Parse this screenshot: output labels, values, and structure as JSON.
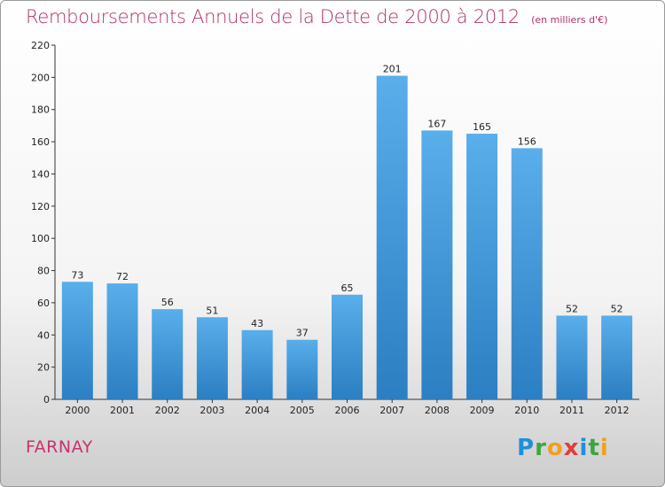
{
  "header": {
    "title": "Remboursements Annuels de la Dette de 2000 à 2012",
    "unit": "(en milliers d'€)"
  },
  "footer": {
    "commune": "FARNAY",
    "logo_letters": [
      "P",
      "r",
      "o",
      "x",
      "i",
      "t",
      "i"
    ]
  },
  "colors": {
    "bar_top": "#5aaeea",
    "bar_bottom": "#2b7fc2",
    "title": "#b0306a",
    "axis": "#333333"
  },
  "chart_data": {
    "type": "bar",
    "title": "Remboursements Annuels de la Dette de 2000 à 2012",
    "xlabel": "",
    "ylabel": "",
    "categories": [
      "2000",
      "2001",
      "2002",
      "2003",
      "2004",
      "2005",
      "2006",
      "2007",
      "2008",
      "2009",
      "2010",
      "2011",
      "2012"
    ],
    "values": [
      73,
      72,
      56,
      51,
      43,
      37,
      65,
      201,
      167,
      165,
      156,
      52,
      52
    ],
    "ylim": [
      0,
      220
    ],
    "yticks": [
      0,
      20,
      40,
      60,
      80,
      100,
      120,
      140,
      160,
      180,
      200,
      220
    ],
    "grid": false,
    "legend": "none"
  }
}
